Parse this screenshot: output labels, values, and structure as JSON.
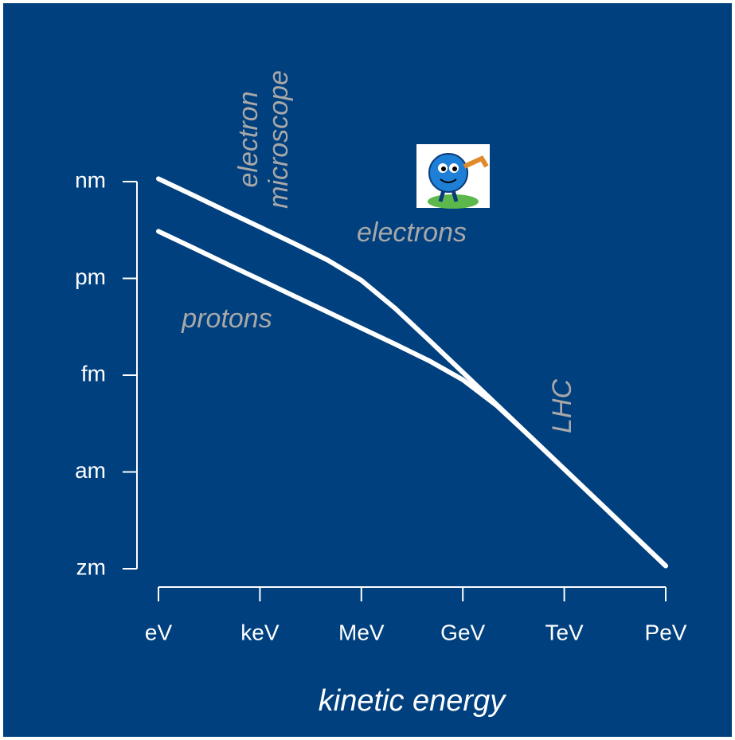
{
  "chart_data": {
    "type": "line",
    "x_label": "kinetic energy",
    "x": [
      0,
      1,
      2,
      3,
      4,
      5,
      6,
      7,
      8,
      9,
      10,
      11,
      12,
      13,
      14,
      15
    ],
    "series": [
      {
        "name": "electrons",
        "color": "#ffffff",
        "values": [
          -8.91,
          -9.41,
          -9.91,
          -10.41,
          -10.91,
          -11.43,
          -12.06,
          -12.93,
          -13.91,
          -14.91,
          -15.91,
          -16.91,
          -17.91,
          -18.91,
          -19.91,
          -20.91
        ]
      },
      {
        "name": "protons",
        "color": "#ffffff",
        "values": [
          -10.54,
          -11.04,
          -11.54,
          -12.04,
          -12.54,
          -13.04,
          -13.54,
          -14.04,
          -14.55,
          -15.14,
          -15.94,
          -16.91,
          -17.91,
          -18.91,
          -19.91,
          -20.91
        ]
      }
    ],
    "xlim": [
      0,
      15
    ],
    "xticks": [
      {
        "value": 0,
        "label": "eV"
      },
      {
        "value": 3,
        "label": "keV"
      },
      {
        "value": 6,
        "label": "MeV"
      },
      {
        "value": 9,
        "label": "GeV"
      },
      {
        "value": 12,
        "label": "TeV"
      },
      {
        "value": 15,
        "label": "PeV"
      }
    ],
    "ylim": [
      -21,
      -9
    ],
    "yticks": [
      {
        "value": -9,
        "label": "nm"
      },
      {
        "value": -12,
        "label": "pm"
      },
      {
        "value": -15,
        "label": "fm"
      },
      {
        "value": -18,
        "label": "am"
      },
      {
        "value": -21,
        "label": "zm"
      }
    ],
    "annotations": [
      "electron",
      "microscope",
      "electrons",
      "protons",
      "LHC"
    ]
  }
}
